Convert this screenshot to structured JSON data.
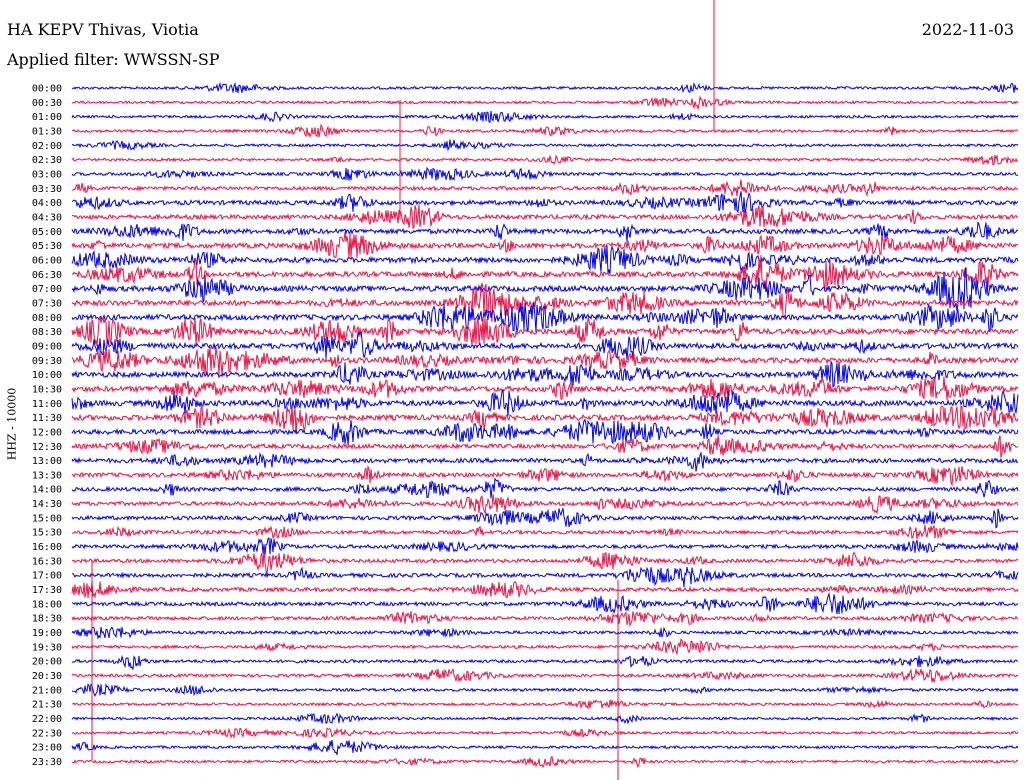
{
  "header": {
    "station": "HA KEPV Thivas, Viotia",
    "date": "2022-11-03",
    "filter": "Applied filter: WWSSN-SP",
    "channel": "HHZ - 10000"
  },
  "colors": {
    "even_row": "#0000ee",
    "odd_row": "#ee1144",
    "background": "#ffffff"
  },
  "chart_data": {
    "type": "line",
    "title": "HA KEPV Thivas, Viotia",
    "ylabel": "HHZ - 10000",
    "grid": false,
    "rows": [
      "00:00",
      "00:30",
      "01:00",
      "01:30",
      "02:00",
      "02:30",
      "03:00",
      "03:30",
      "04:00",
      "04:30",
      "05:00",
      "05:30",
      "06:00",
      "06:30",
      "07:00",
      "07:30",
      "08:00",
      "08:30",
      "09:00",
      "09:30",
      "10:00",
      "10:30",
      "11:00",
      "11:30",
      "12:00",
      "12:30",
      "13:00",
      "13:30",
      "14:00",
      "14:30",
      "15:00",
      "15:30",
      "16:00",
      "16:30",
      "17:00",
      "17:30",
      "18:00",
      "18:30",
      "19:00",
      "19:30",
      "20:00",
      "20:30",
      "21:00",
      "21:30",
      "22:00",
      "22:30",
      "23:00",
      "23:30"
    ],
    "row_activity": [
      0.2,
      0.2,
      0.2,
      0.25,
      0.2,
      0.2,
      0.3,
      0.45,
      0.6,
      0.6,
      0.7,
      0.75,
      0.8,
      0.8,
      0.85,
      0.85,
      0.85,
      0.85,
      0.85,
      0.8,
      0.8,
      0.8,
      0.85,
      0.85,
      0.7,
      0.6,
      0.6,
      0.55,
      0.5,
      0.5,
      0.5,
      0.45,
      0.45,
      0.45,
      0.5,
      0.5,
      0.45,
      0.4,
      0.3,
      0.3,
      0.3,
      0.3,
      0.25,
      0.2,
      0.2,
      0.2,
      0.2,
      0.2
    ]
  }
}
